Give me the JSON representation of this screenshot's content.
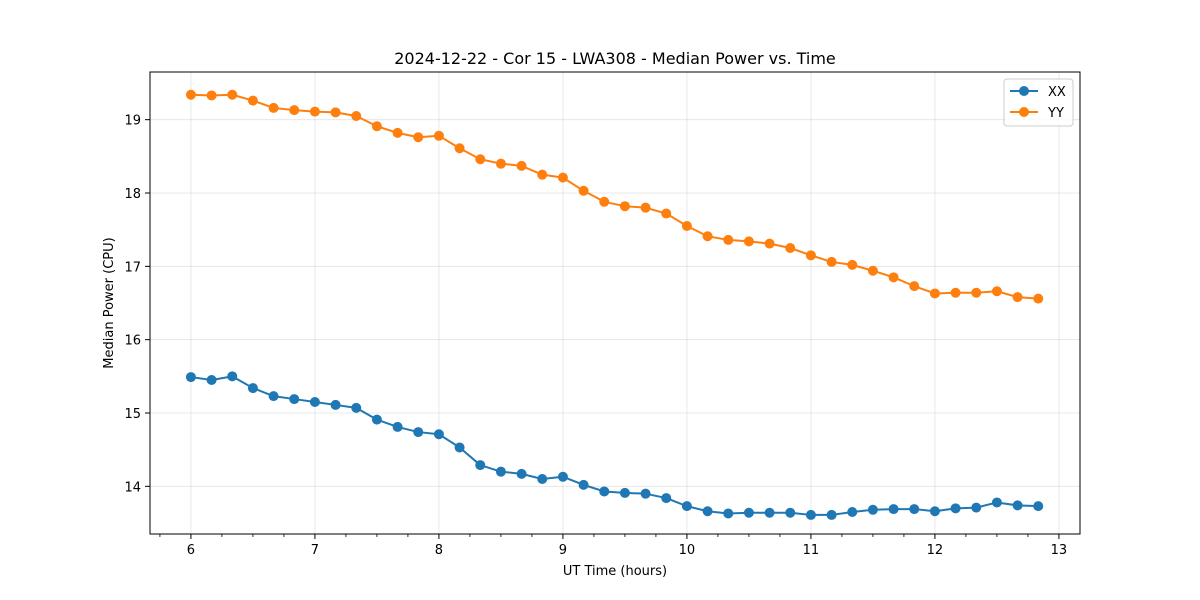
{
  "chart_data": {
    "type": "line",
    "title": "2024-12-22 - Cor 15 - LWA308 - Median Power vs. Time",
    "xlabel": "UT Time (hours)",
    "ylabel": "Median Power (CPU)",
    "xlim": [
      5.67,
      13.17
    ],
    "ylim": [
      13.35,
      19.65
    ],
    "xticks": [
      6,
      7,
      8,
      9,
      10,
      11,
      12,
      13
    ],
    "yticks": [
      14,
      15,
      16,
      17,
      18,
      19
    ],
    "grid": true,
    "legend": "top-right",
    "x": [
      6.0,
      6.1667,
      6.3333,
      6.5,
      6.6667,
      6.8333,
      7.0,
      7.1667,
      7.3333,
      7.5,
      7.6667,
      7.8333,
      8.0,
      8.1667,
      8.3333,
      8.5,
      8.6667,
      8.8333,
      9.0,
      9.1667,
      9.3333,
      9.5,
      9.6667,
      9.8333,
      10.0,
      10.1667,
      10.3333,
      10.5,
      10.6667,
      10.8333,
      11.0,
      11.1667,
      11.3333,
      11.5,
      11.6667,
      11.8333,
      12.0,
      12.1667,
      12.3333,
      12.5,
      12.6667,
      12.8333
    ],
    "series": [
      {
        "name": "XX",
        "color": "#1f77b4",
        "values": [
          15.49,
          15.45,
          15.5,
          15.34,
          15.23,
          15.19,
          15.15,
          15.11,
          15.07,
          14.91,
          14.81,
          14.74,
          14.71,
          14.53,
          14.29,
          14.2,
          14.17,
          14.1,
          14.13,
          14.02,
          13.93,
          13.91,
          13.9,
          13.84,
          13.73,
          13.66,
          13.63,
          13.64,
          13.64,
          13.64,
          13.61,
          13.61,
          13.65,
          13.68,
          13.69,
          13.69,
          13.66,
          13.7,
          13.71,
          13.78,
          13.74,
          13.73
        ]
      },
      {
        "name": "YY",
        "color": "#ff7f0e",
        "values": [
          19.34,
          19.33,
          19.34,
          19.26,
          19.16,
          19.13,
          19.11,
          19.1,
          19.05,
          18.91,
          18.82,
          18.76,
          18.78,
          18.61,
          18.46,
          18.4,
          18.37,
          18.25,
          18.21,
          18.03,
          17.88,
          17.82,
          17.8,
          17.72,
          17.55,
          17.41,
          17.36,
          17.34,
          17.31,
          17.25,
          17.15,
          17.06,
          17.02,
          16.94,
          16.85,
          16.73,
          16.63,
          16.64,
          16.64,
          16.66,
          16.58,
          16.56
        ]
      }
    ]
  }
}
